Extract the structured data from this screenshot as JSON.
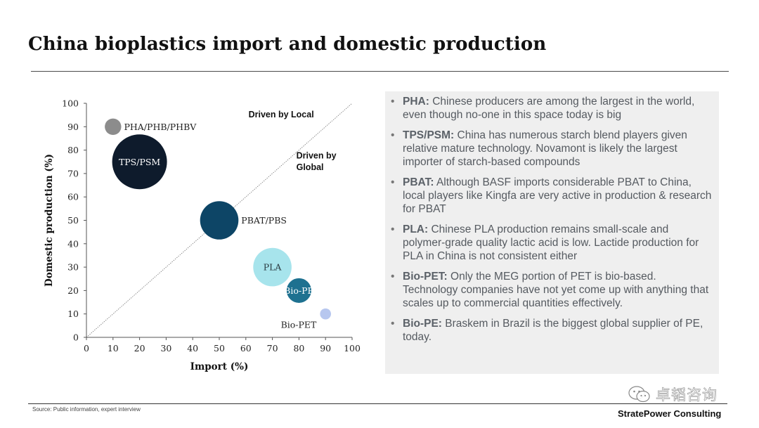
{
  "title": "China bioplastics import and domestic production",
  "chart_data": {
    "type": "bubble",
    "xlabel": "Import (%)",
    "ylabel": "Domestic production (%)",
    "xlim": [
      0,
      100
    ],
    "ylim": [
      0,
      100
    ],
    "x_ticks": [
      "0",
      "10",
      "20",
      "30",
      "40",
      "50",
      "60",
      "70",
      "80",
      "90",
      "100"
    ],
    "y_ticks": [
      "0",
      "10",
      "20",
      "30",
      "40",
      "50",
      "60",
      "70",
      "80",
      "90",
      "100"
    ],
    "diagonal": true,
    "region_labels": [
      {
        "text": "Driven by Local"
      },
      {
        "text_lines": [
          "Driven by",
          "Global"
        ]
      }
    ],
    "points": [
      {
        "label": "PHA/PHB/PHBV",
        "x": 10,
        "y": 90,
        "size": 0.3,
        "color": "#8c8c8c",
        "label_pos": "right"
      },
      {
        "label": "TPS/PSM",
        "x": 20,
        "y": 75,
        "size": 1.0,
        "color": "#0e1b2c",
        "label_pos": "inside"
      },
      {
        "label": "PBAT/PBS",
        "x": 50,
        "y": 50,
        "size": 0.7,
        "color": "#0d4566",
        "label_pos": "right"
      },
      {
        "label": "PLA",
        "x": 70,
        "y": 30,
        "size": 0.7,
        "color": "#a7e4ec",
        "label_pos": "inside"
      },
      {
        "label": "Bio-PE",
        "x": 80,
        "y": 20,
        "size": 0.45,
        "color": "#1e7190",
        "label_pos": "inside"
      },
      {
        "label": "Bio-PET",
        "x": 90,
        "y": 10,
        "size": 0.2,
        "color": "#b7c7ef",
        "label_pos": "below-left"
      }
    ]
  },
  "notes": [
    {
      "term": "PHA:",
      "text": " Chinese producers are among the largest in the world, even though no-one in this space today is big"
    },
    {
      "term": "TPS/PSM:",
      "text": " China has numerous starch blend players given relative mature technology. Novamont is likely the largest importer of starch-based compounds"
    },
    {
      "term": "PBAT:",
      "text": " Although BASF imports considerable PBAT to China, local players like Kingfa are very active in production & research for PBAT"
    },
    {
      "term": "PLA:",
      "text": " Chinese PLA production remains small-scale and polymer-grade quality lactic acid is low. Lactide production for PLA in China is not consistent either"
    },
    {
      "term": "Bio-PET:",
      "text": " Only the MEG portion of PET is bio-based. Technology companies have not yet come up with anything that scales up to commercial quantities effectively."
    },
    {
      "term": "Bio-PE:",
      "text": " Braskem in Brazil is the biggest global supplier of PE, today."
    }
  ],
  "bullet_char": "•",
  "footer": {
    "source": "Source: Public information, expert interview",
    "brand": "StratePower Consulting"
  },
  "watermark": {
    "icon": "wechat-icon",
    "text": "卓韬咨询"
  }
}
